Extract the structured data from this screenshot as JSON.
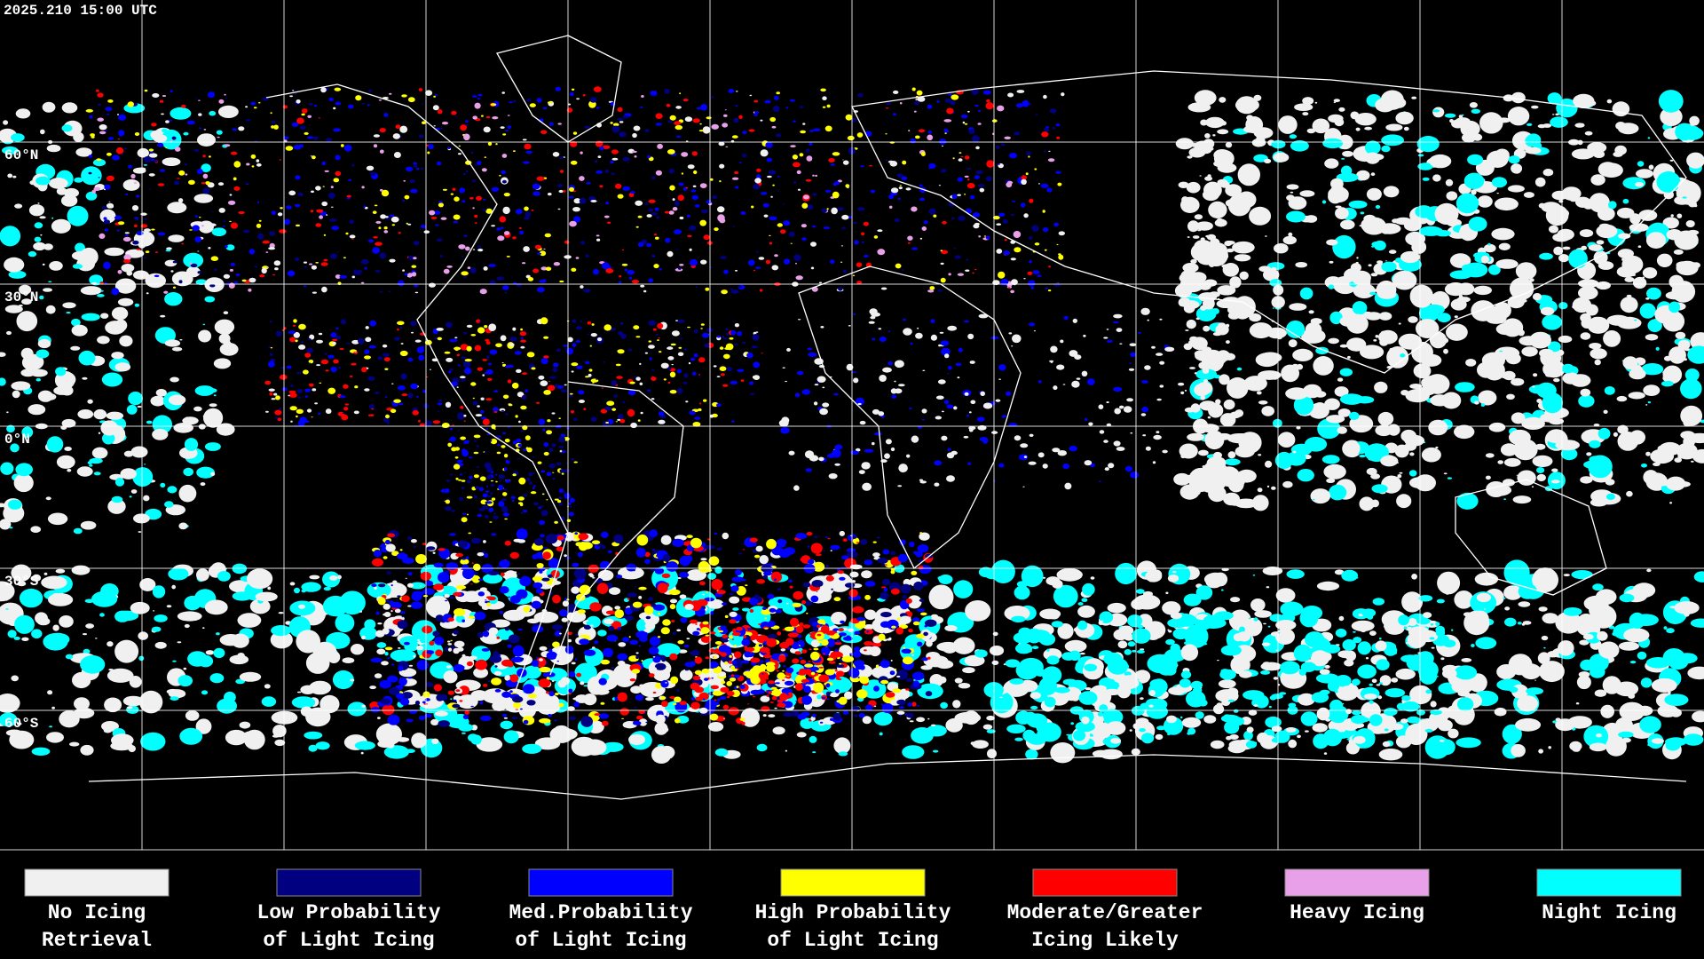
{
  "header": {
    "timestamp": "2025.210 15:00 UTC"
  },
  "map": {
    "latitude_labels": [
      "60°N",
      "30°N",
      "0°N",
      "30°S",
      "60°S"
    ]
  },
  "legend": [
    {
      "lines": [
        "No Icing",
        "Retrieval"
      ],
      "color": "#f0f0f0"
    },
    {
      "lines": [
        "Low Probability",
        "of Light Icing"
      ],
      "color": "#000080"
    },
    {
      "lines": [
        "Med.Probability",
        "of Light Icing"
      ],
      "color": "#0000ff"
    },
    {
      "lines": [
        "High Probability",
        "of Light Icing"
      ],
      "color": "#ffff00"
    },
    {
      "lines": [
        "Moderate/Greater",
        "Icing Likely"
      ],
      "color": "#ff0000"
    },
    {
      "lines": [
        "Heavy Icing"
      ],
      "color": "#e8a0e8"
    },
    {
      "lines": [
        "Night Icing"
      ],
      "color": "#00ffff"
    }
  ]
}
